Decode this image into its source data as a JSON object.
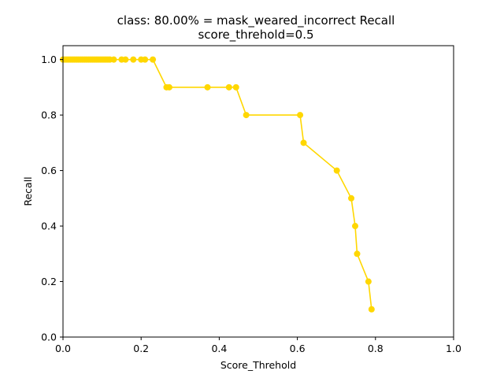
{
  "chart_data": {
    "type": "line",
    "title": "class: 80.00% = mask_weared_incorrect Recall",
    "subtitle": "score_threhold=0.5",
    "xlabel": "Score_Threhold",
    "ylabel": "Recall",
    "xlim": [
      0.0,
      1.0
    ],
    "ylim": [
      0.0,
      1.05
    ],
    "xticks": [
      "0.0",
      "0.2",
      "0.4",
      "0.6",
      "0.8",
      "1.0"
    ],
    "yticks": [
      "0.0",
      "0.2",
      "0.4",
      "0.6",
      "0.8",
      "1.0"
    ],
    "grid": false,
    "color": "#ffd700",
    "series": [
      {
        "x": [
          0.0,
          0.005,
          0.01,
          0.015,
          0.02,
          0.025,
          0.03,
          0.035,
          0.04,
          0.045,
          0.05,
          0.055,
          0.06,
          0.065,
          0.07,
          0.075,
          0.08,
          0.085,
          0.09,
          0.095,
          0.1,
          0.105,
          0.11,
          0.115,
          0.12,
          0.13,
          0.15,
          0.16,
          0.18,
          0.2,
          0.21,
          0.23,
          0.265,
          0.272,
          0.37,
          0.425,
          0.443,
          0.469,
          0.607,
          0.616,
          0.701,
          0.738,
          0.748,
          0.753,
          0.782,
          0.79
        ],
        "y": [
          1.0,
          1.0,
          1.0,
          1.0,
          1.0,
          1.0,
          1.0,
          1.0,
          1.0,
          1.0,
          1.0,
          1.0,
          1.0,
          1.0,
          1.0,
          1.0,
          1.0,
          1.0,
          1.0,
          1.0,
          1.0,
          1.0,
          1.0,
          1.0,
          1.0,
          1.0,
          1.0,
          1.0,
          1.0,
          1.0,
          1.0,
          1.0,
          0.9,
          0.9,
          0.9,
          0.9,
          0.9,
          0.8,
          0.8,
          0.7,
          0.6,
          0.5,
          0.4,
          0.3,
          0.2,
          0.1
        ]
      }
    ]
  }
}
